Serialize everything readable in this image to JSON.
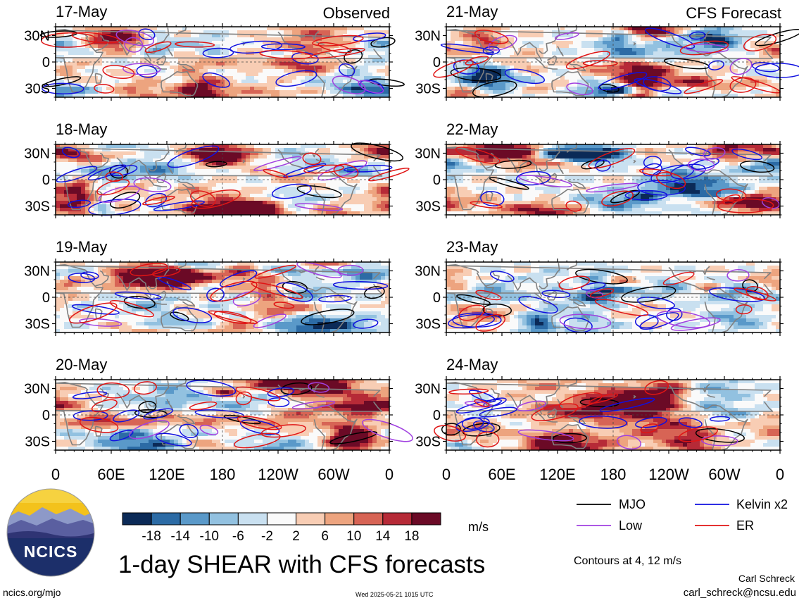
{
  "chart_data": {
    "type": "heatmap",
    "title": "1-day SHEAR with CFS forecasts",
    "columns": [
      {
        "header": "Observed",
        "panels": [
          {
            "date": "17-May",
            "seed": 11
          },
          {
            "date": "18-May",
            "seed": 23
          },
          {
            "date": "19-May",
            "seed": 37
          },
          {
            "date": "20-May",
            "seed": 41
          }
        ]
      },
      {
        "header": "CFS Forecast",
        "panels": [
          {
            "date": "21-May",
            "seed": 53
          },
          {
            "date": "22-May",
            "seed": 67
          },
          {
            "date": "23-May",
            "seed": 79
          },
          {
            "date": "24-May",
            "seed": 83
          }
        ]
      }
    ],
    "x_ticks": [
      "0",
      "60E",
      "120E",
      "180",
      "120W",
      "60W",
      "0"
    ],
    "x_range_deg_east": [
      0,
      360
    ],
    "y_ticks": [
      "30N",
      "0",
      "30S"
    ],
    "y_range_deg": [
      -40,
      40
    ],
    "colorbar": {
      "unit": "m/s",
      "bounds": [
        -22,
        -18,
        -14,
        -10,
        -6,
        -2,
        2,
        6,
        10,
        14,
        18,
        22
      ],
      "tick_labels": [
        "-18",
        "-14",
        "-10",
        "-6",
        "-2",
        "2",
        "6",
        "10",
        "14",
        "18"
      ],
      "colors": [
        "#0b2a57",
        "#2c6ba5",
        "#5a99c9",
        "#92c1e0",
        "#c9e0f0",
        "#fafafa",
        "#f8cdb4",
        "#eda47f",
        "#d76455",
        "#b62a37",
        "#6b0a26"
      ]
    },
    "legend": {
      "position": "bottom-right",
      "items": [
        {
          "label": "MJO",
          "color": "#000000"
        },
        {
          "label": "Kelvin x2",
          "color": "#1010e0"
        },
        {
          "label": "Low",
          "color": "#a040e0"
        },
        {
          "label": "ER",
          "color": "#e01515"
        }
      ]
    },
    "contours_note": "Contours at 4, 12 m/s"
  },
  "footer": {
    "logo_text": "NCICS",
    "site": "ncics.org/mjo",
    "timestamp": "Wed 2025-05-21 1015 UTC",
    "author": "Carl Schreck",
    "email": "carl_schreck@ncsu.edu"
  },
  "colors": {
    "coast": "#808080",
    "frame": "#000000"
  }
}
